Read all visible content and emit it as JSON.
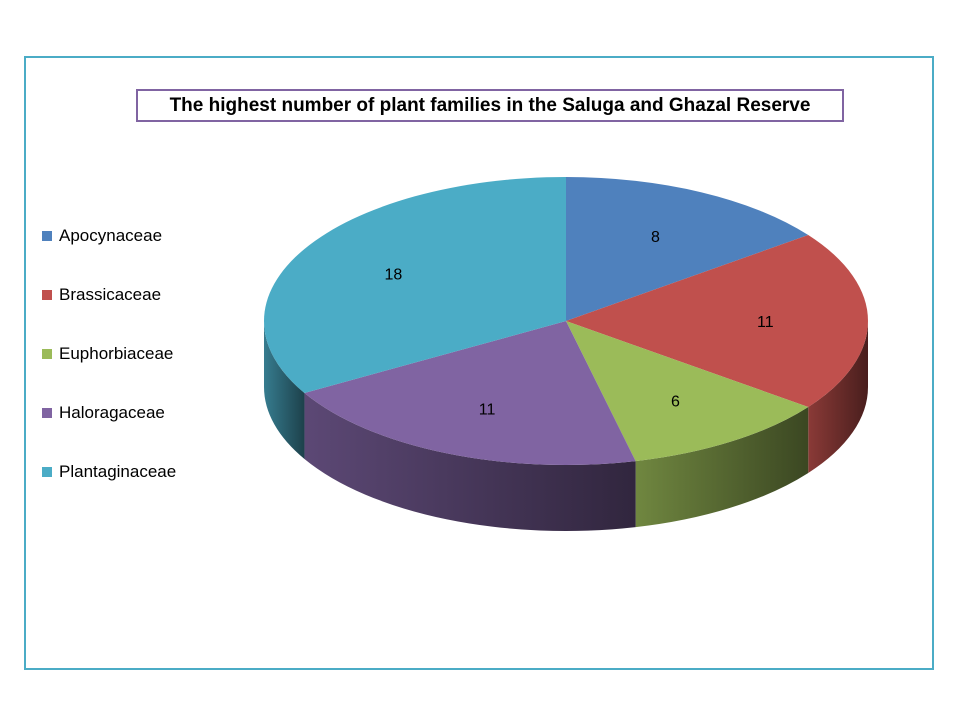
{
  "chart_data": {
    "type": "pie",
    "style": "3d",
    "title": "The highest number of plant families in the Saluga and Ghazal Reserve",
    "categories": [
      "Apocynaceae",
      "Brassicaceae",
      "Euphorbiaceae",
      "Haloragaceae",
      "Plantaginaceae"
    ],
    "values": [
      8,
      11,
      6,
      11,
      18
    ],
    "colors": [
      "#4f81bd",
      "#c0504d",
      "#9bbb59",
      "#8064a2",
      "#4bacc6"
    ],
    "data_labels": [
      "8",
      "11",
      "6",
      "11",
      "18"
    ],
    "legend_position": "left"
  }
}
